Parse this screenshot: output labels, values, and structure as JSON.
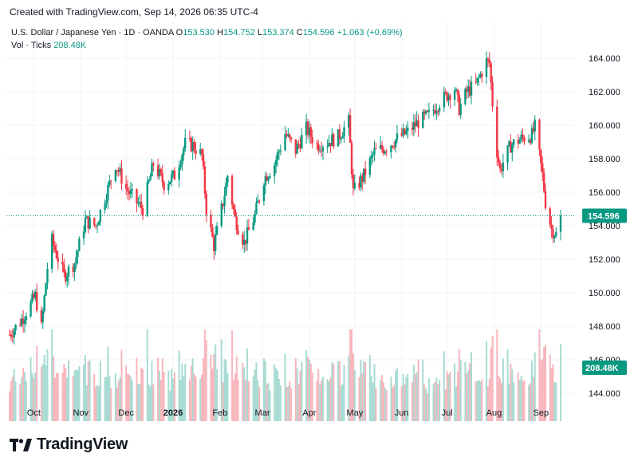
{
  "header": {
    "created_text": "Created with TradingView.com, Sep 14, 2026 06:35 UTC-4"
  },
  "footer": {
    "brand": "TradingView"
  },
  "legend": {
    "symbol": "U.S. Dollar / Japanese Yen · 1D · OANDA",
    "o_label": "O",
    "o_value": "153.530",
    "h_label": "H",
    "h_value": "154.752",
    "l_label": "L",
    "l_value": "153.374",
    "c_label": "C",
    "c_value": "154.596",
    "change": "+1.063 (+0.69%)",
    "vol_label": "Vol · Ticks",
    "vol_value": "208.48K"
  },
  "colors": {
    "up": "#089981",
    "down": "#f23645",
    "up_vol": "#a8dbd3",
    "down_vol": "#f7b6bc",
    "grid": "#f0f3fa",
    "text": "#131722"
  },
  "chart_data": {
    "type": "candlestick",
    "price_axis": {
      "min": 144,
      "max": 164,
      "ticks": [
        "144.000",
        "146.000",
        "148.000",
        "150.000",
        "152.000",
        "154.000",
        "156.000",
        "158.000",
        "160.000",
        "162.000",
        "164.000"
      ]
    },
    "time_axis": {
      "labels": [
        "Oct",
        "Nov",
        "Dec",
        "2026",
        "Feb",
        "Mar",
        "Apr",
        "May",
        "Jun",
        "Jul",
        "Aug",
        "Sep"
      ]
    },
    "last_price": {
      "value": 154.596,
      "label": "154.596"
    },
    "last_volume": {
      "value": 208480,
      "label": "208.48K"
    },
    "grid": true,
    "anchors": [
      {
        "m": "2025-09-15",
        "p": 147.5
      },
      {
        "m": "2025-09-23",
        "p": 148.4
      },
      {
        "m": "2025-10-02",
        "p": 149.8
      },
      {
        "m": "2025-10-06",
        "p": 147.9
      },
      {
        "m": "2025-10-10",
        "p": 151.5
      },
      {
        "m": "2025-10-13",
        "p": 153.1
      },
      {
        "m": "2025-10-21",
        "p": 151.0
      },
      {
        "m": "2025-10-28",
        "p": 151.8
      },
      {
        "m": "2025-11-04",
        "p": 154.3
      },
      {
        "m": "2025-11-11",
        "p": 154.0
      },
      {
        "m": "2025-11-20",
        "p": 156.5
      },
      {
        "m": "2025-11-24",
        "p": 157.7
      },
      {
        "m": "2025-12-01",
        "p": 156.2
      },
      {
        "m": "2025-12-08",
        "p": 155.4
      },
      {
        "m": "2025-12-12",
        "p": 155.0
      },
      {
        "m": "2025-12-19",
        "p": 157.7
      },
      {
        "m": "2025-12-26",
        "p": 156.5
      },
      {
        "m": "2026-01-02",
        "p": 157.0
      },
      {
        "m": "2026-01-09",
        "p": 158.9
      },
      {
        "m": "2026-01-14",
        "p": 158.8
      },
      {
        "m": "2026-01-20",
        "p": 158.2
      },
      {
        "m": "2026-01-23",
        "p": 155.0
      },
      {
        "m": "2026-01-28",
        "p": 152.8
      },
      {
        "m": "2026-02-03",
        "p": 155.4
      },
      {
        "m": "2026-02-06",
        "p": 157.0
      },
      {
        "m": "2026-02-11",
        "p": 154.4
      },
      {
        "m": "2026-02-17",
        "p": 153.0
      },
      {
        "m": "2026-02-24",
        "p": 154.6
      },
      {
        "m": "2026-03-02",
        "p": 156.8
      },
      {
        "m": "2026-03-09",
        "p": 157.7
      },
      {
        "m": "2026-03-16",
        "p": 159.5
      },
      {
        "m": "2026-03-23",
        "p": 158.5
      },
      {
        "m": "2026-03-30",
        "p": 159.8
      },
      {
        "m": "2026-04-06",
        "p": 158.8
      },
      {
        "m": "2026-04-13",
        "p": 159.0
      },
      {
        "m": "2026-04-20",
        "p": 159.3
      },
      {
        "m": "2026-04-27",
        "p": 160.2
      },
      {
        "m": "2026-04-30",
        "p": 156.0
      },
      {
        "m": "2026-05-07",
        "p": 157.0
      },
      {
        "m": "2026-05-14",
        "p": 158.4
      },
      {
        "m": "2026-05-22",
        "p": 158.7
      },
      {
        "m": "2026-05-29",
        "p": 159.2
      },
      {
        "m": "2026-06-05",
        "p": 159.6
      },
      {
        "m": "2026-06-12",
        "p": 160.2
      },
      {
        "m": "2026-06-19",
        "p": 160.6
      },
      {
        "m": "2026-06-26",
        "p": 161.4
      },
      {
        "m": "2026-07-01",
        "p": 161.8
      },
      {
        "m": "2026-07-06",
        "p": 162.2
      },
      {
        "m": "2026-07-09",
        "p": 161.0
      },
      {
        "m": "2026-07-14",
        "p": 162.0
      },
      {
        "m": "2026-07-20",
        "p": 162.4
      },
      {
        "m": "2026-07-27",
        "p": 163.8
      },
      {
        "m": "2026-07-29",
        "p": 163.7
      },
      {
        "m": "2026-07-31",
        "p": 161.3
      },
      {
        "m": "2026-08-02",
        "p": 159.0
      },
      {
        "m": "2026-08-05",
        "p": 157.3
      },
      {
        "m": "2026-08-07",
        "p": 157.8
      },
      {
        "m": "2026-08-12",
        "p": 158.8
      },
      {
        "m": "2026-08-19",
        "p": 159.2
      },
      {
        "m": "2026-08-26",
        "p": 159.4
      },
      {
        "m": "2026-08-28",
        "p": 159.9
      },
      {
        "m": "2026-09-02",
        "p": 157.0
      },
      {
        "m": "2026-09-04",
        "p": 155.4
      },
      {
        "m": "2026-09-08",
        "p": 153.8
      },
      {
        "m": "2026-09-11",
        "p": 153.5
      },
      {
        "m": "2026-09-14",
        "p": 154.596
      }
    ]
  }
}
